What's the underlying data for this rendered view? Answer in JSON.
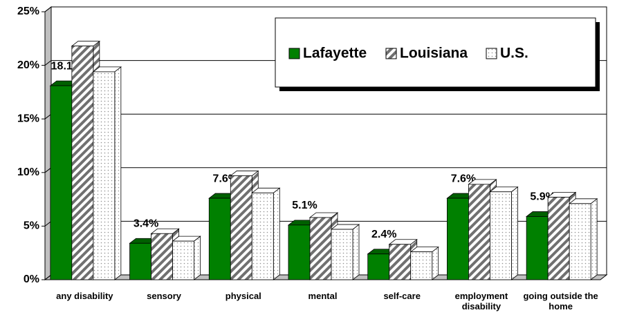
{
  "chart_data": {
    "type": "bar",
    "categories": [
      "any disability",
      "sensory",
      "physical",
      "mental",
      "self-care",
      "employment disability",
      "going outside the home"
    ],
    "series": [
      {
        "name": "Lafayette",
        "color": "#008000",
        "values": [
          18.1,
          3.4,
          7.6,
          5.1,
          2.4,
          7.6,
          5.9
        ],
        "value_labels": [
          "18.1%",
          "3.4%",
          "7.6%",
          "5.1%",
          "2.4%",
          "7.6%",
          "5.9%"
        ]
      },
      {
        "name": "Louisiana",
        "color": "#707070",
        "values": [
          21.8,
          4.3,
          9.7,
          5.8,
          3.3,
          8.9,
          7.7
        ]
      },
      {
        "name": "U.S.",
        "color": "#a0a0a0",
        "values": [
          19.4,
          3.6,
          8.1,
          4.7,
          2.6,
          8.2,
          7.1
        ]
      }
    ],
    "ylim": [
      0,
      25
    ],
    "yticks": [
      {
        "value": 0,
        "label": "0%"
      },
      {
        "value": 5,
        "label": "5%"
      },
      {
        "value": 10,
        "label": "10%"
      },
      {
        "value": 15,
        "label": "15%"
      },
      {
        "value": 20,
        "label": "20%"
      },
      {
        "value": 25,
        "label": "25%"
      }
    ],
    "grid": true,
    "legend": "top-right"
  }
}
